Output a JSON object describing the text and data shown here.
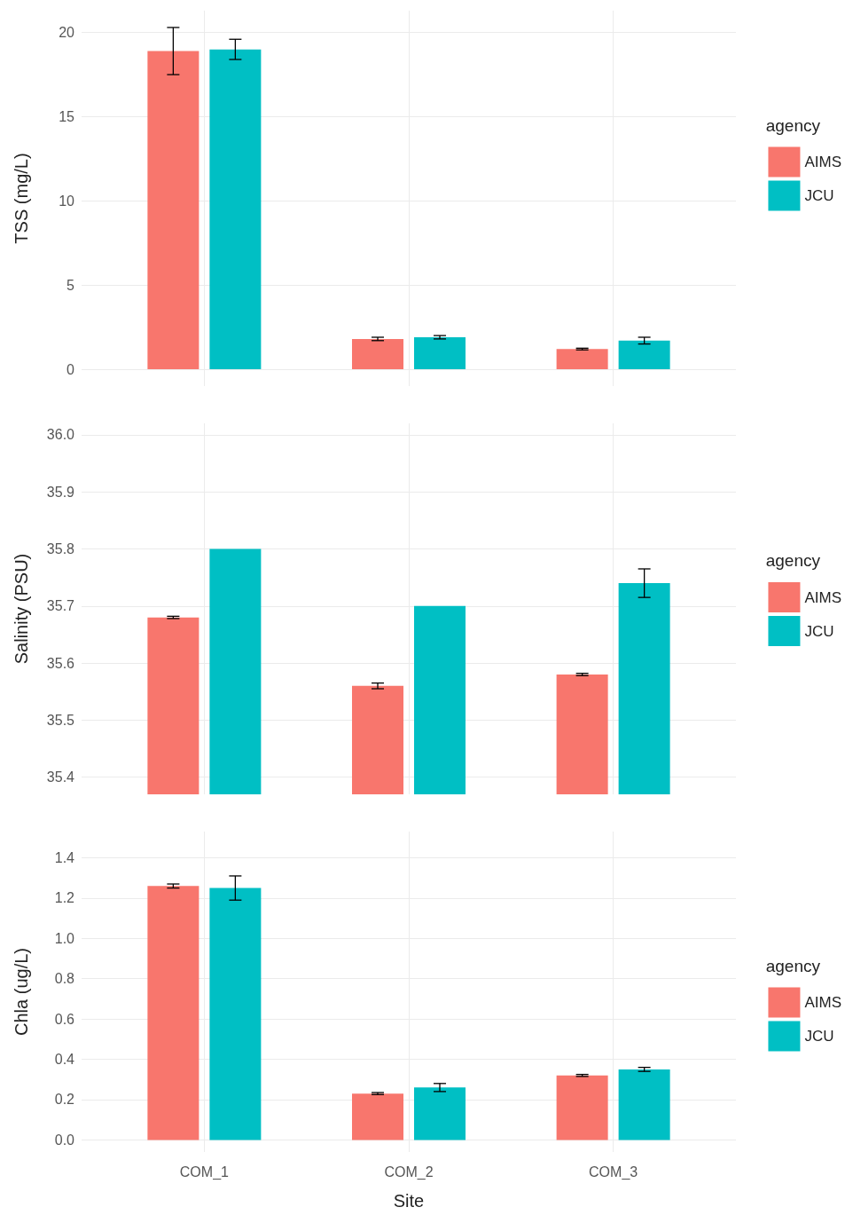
{
  "chart_data": [
    {
      "type": "bar",
      "ylabel": "TSS (mg/L)",
      "legend_title": "agency",
      "categories": [
        null,
        null,
        null
      ],
      "series": [
        {
          "name": "AIMS",
          "color": "#f8766d",
          "values": [
            18.9,
            1.8,
            1.2
          ],
          "errors": [
            1.4,
            0.1,
            0.05
          ]
        },
        {
          "name": "JCU",
          "color": "#00bfc4",
          "values": [
            19.0,
            1.9,
            1.7
          ],
          "errors": [
            0.6,
            0.1,
            0.2
          ]
        }
      ],
      "ylim": [
        -1,
        21.3
      ],
      "yticks": [
        0,
        5,
        10,
        15,
        20
      ],
      "grid": true,
      "legend": "right",
      "tick_labels": "y"
    },
    {
      "type": "bar",
      "ylabel": "Salinity (PSU)",
      "legend_title": "agency",
      "categories": [
        null,
        null,
        null
      ],
      "series": [
        {
          "name": "AIMS",
          "color": "#f8766d",
          "values": [
            35.68,
            35.56,
            35.58
          ],
          "errors": [
            0.002,
            0.005,
            0.002
          ]
        },
        {
          "name": "JCU",
          "color": "#00bfc4",
          "values": [
            35.8,
            35.7,
            35.74
          ],
          "errors": [
            null,
            null,
            0.025
          ]
        }
      ],
      "ylim": [
        35.37,
        36.02
      ],
      "yticks": [
        {
          "value": 35.4,
          "label": "35.4"
        },
        {
          "value": 35.5,
          "label": "35.5"
        },
        {
          "value": 35.6,
          "label": "35.6"
        },
        {
          "value": 35.7,
          "label": "35.7"
        },
        {
          "value": 35.8,
          "label": "35.8"
        },
        {
          "value": 35.9,
          "label": "35.9"
        },
        {
          "value": 36,
          "label": "36.0"
        }
      ],
      "grid": true,
      "legend": "right",
      "tick_labels": "y"
    },
    {
      "type": "bar",
      "xlabel": "Site",
      "ylabel": "Chla (ug/L)",
      "legend_title": "agency",
      "categories": [
        "COM_1",
        "COM_2",
        "COM_3"
      ],
      "series": [
        {
          "name": "AIMS",
          "color": "#f8766d",
          "values": [
            1.26,
            0.23,
            0.32
          ],
          "errors": [
            0.01,
            0.005,
            0.005
          ]
        },
        {
          "name": "JCU",
          "color": "#00bfc4",
          "values": [
            1.25,
            0.26,
            0.35
          ],
          "errors": [
            0.06,
            0.02,
            0.01
          ]
        }
      ],
      "ylim": [
        -0.06,
        1.53
      ],
      "yticks": [
        {
          "value": 0,
          "label": "0.0"
        },
        {
          "value": 0.2,
          "label": "0.2"
        },
        {
          "value": 0.4,
          "label": "0.4"
        },
        {
          "value": 0.6,
          "label": "0.6"
        },
        {
          "value": 0.8,
          "label": "0.8"
        },
        {
          "value": 1,
          "label": "1.0"
        },
        {
          "value": 1.2,
          "label": "1.2"
        },
        {
          "value": 1.4,
          "label": "1.4"
        }
      ],
      "grid": true,
      "legend": "right"
    }
  ]
}
